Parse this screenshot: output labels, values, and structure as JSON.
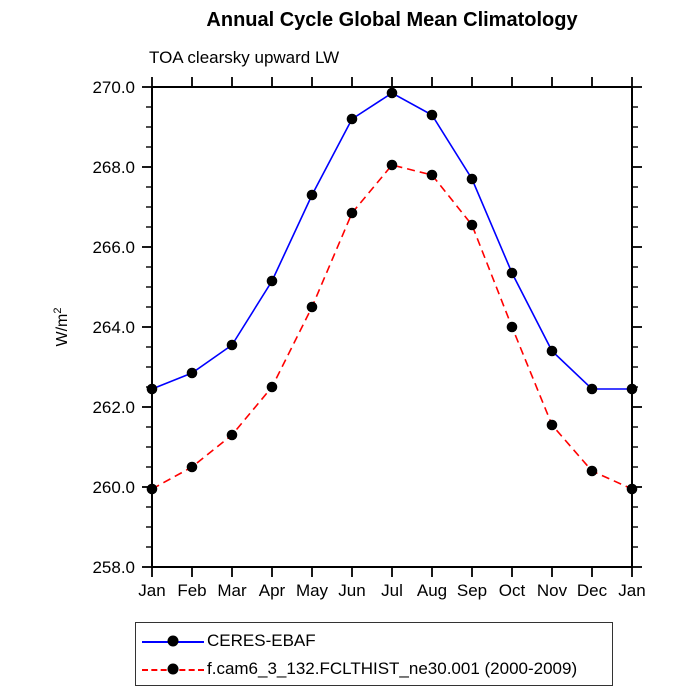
{
  "chart": {
    "title": "Annual Cycle Global Mean Climatology",
    "subtitle": "TOA clearsky upward LW"
  },
  "chart_data": {
    "type": "line",
    "title": "Annual Cycle Global Mean Climatology",
    "subtitle": "TOA clearsky upward LW",
    "ylabel": "W/m²",
    "ylabel_base": "W/m",
    "ylabel_sup": "2",
    "xlabel": "",
    "categories": [
      "Jan",
      "Feb",
      "Mar",
      "Apr",
      "May",
      "Jun",
      "Jul",
      "Aug",
      "Sep",
      "Oct",
      "Nov",
      "Dec",
      "Jan"
    ],
    "ylim": [
      258.0,
      270.0
    ],
    "ytick_step": 2.0,
    "ytick_minor_step": 0.5,
    "ytick_labels": [
      "258.0",
      "260.0",
      "262.0",
      "264.0",
      "266.0",
      "268.0",
      "270.0"
    ],
    "grid": false,
    "legend_position": "bottom-left-box",
    "background_color": "#ffffff",
    "axis_color": "#000000",
    "series": [
      {
        "name": "CERES-EBAF",
        "color": "#0000ff",
        "line_style": "solid",
        "marker": "filled-circle",
        "marker_color": "#000000",
        "values": [
          262.45,
          262.85,
          263.55,
          265.15,
          267.3,
          269.2,
          269.85,
          269.3,
          267.7,
          265.35,
          263.4,
          262.45,
          262.45
        ]
      },
      {
        "name": "f.cam6_3_132.FCLTHIST_ne30.001 (2000-2009)",
        "color": "#ff0000",
        "line_style": "dashed",
        "marker": "filled-circle",
        "marker_color": "#000000",
        "values": [
          259.95,
          260.5,
          261.3,
          262.5,
          264.5,
          266.85,
          268.05,
          267.8,
          266.55,
          264.0,
          261.55,
          260.4,
          259.95
        ]
      }
    ]
  }
}
